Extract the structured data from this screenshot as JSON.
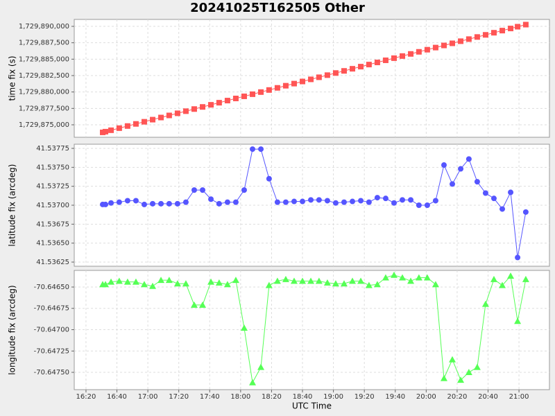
{
  "title": "20241025T162505 Other",
  "chart_data": [
    {
      "type": "line",
      "ylabel": "time fix (s)",
      "grid": true,
      "ylim": [
        1729873099,
        1729891056
      ],
      "yticks": [
        {
          "value": 1729875000,
          "label": "1,729,875,000"
        },
        {
          "value": 1729877500,
          "label": "1,729,877,500"
        },
        {
          "value": 1729880000,
          "label": "1,729,880,000"
        },
        {
          "value": 1729882500,
          "label": "1,729,882,500"
        },
        {
          "value": 1729885000,
          "label": "1,729,885,000"
        },
        {
          "value": 1729887500,
          "label": "1,729,887,500"
        },
        {
          "value": 1729890000,
          "label": "1,729,890,000"
        }
      ],
      "x": [
        990.8,
        992.6,
        996.2,
        1001.5,
        1006.9,
        1012.3,
        1017.7,
        1023.1,
        1028.5,
        1033.8,
        1039.2,
        1044.6,
        1050.0,
        1055.4,
        1060.8,
        1066.1,
        1071.5,
        1076.9,
        1082.3,
        1087.7,
        1093.1,
        1098.4,
        1103.8,
        1109.2,
        1114.6,
        1120.0,
        1125.4,
        1130.7,
        1136.1,
        1141.5,
        1146.9,
        1152.3,
        1157.7,
        1163.0,
        1168.4,
        1173.8,
        1179.2,
        1184.6,
        1190.0,
        1195.3,
        1200.7,
        1206.1,
        1211.5,
        1216.9,
        1222.3,
        1227.6,
        1233.0,
        1238.4,
        1243.8,
        1249.2,
        1254.6,
        1259.1,
        1264.4
      ],
      "series": [
        {
          "color": "#ff5555",
          "marker": "square",
          "values": [
            1729873848,
            1729873956,
            1729874172,
            1729874490,
            1729874814,
            1729875138,
            1729875462,
            1729875786,
            1729876110,
            1729876428,
            1729876752,
            1729877076,
            1729877400,
            1729877724,
            1729878048,
            1729878366,
            1729878690,
            1729879014,
            1729879338,
            1729879662,
            1729879986,
            1729880304,
            1729880628,
            1729880952,
            1729881276,
            1729881600,
            1729881924,
            1729882242,
            1729882566,
            1729882890,
            1729883214,
            1729883538,
            1729883862,
            1729884180,
            1729884504,
            1729884828,
            1729885152,
            1729885476,
            1729885800,
            1729886118,
            1729886442,
            1729886766,
            1729887090,
            1729887414,
            1729887738,
            1729888056,
            1729888380,
            1729888704,
            1729889028,
            1729889352,
            1729889676,
            1729889946,
            1729890264
          ]
        }
      ]
    },
    {
      "type": "line",
      "ylabel": "latitude fix (arcdeg)",
      "grid": true,
      "ylim": [
        41.536195,
        41.537805
      ],
      "yticks": [
        41.53625,
        {
          "value": 41.5365,
          "label": "41.53650"
        },
        41.53675,
        {
          "value": 41.537,
          "label": "41.53700"
        },
        41.53725,
        {
          "value": 41.5375,
          "label": "41.53750"
        },
        41.53775
      ],
      "x": [
        990.8,
        992.6,
        996.2,
        1001.5,
        1006.9,
        1012.3,
        1017.7,
        1023.1,
        1028.5,
        1033.8,
        1039.2,
        1044.6,
        1050.0,
        1055.4,
        1060.8,
        1066.1,
        1071.5,
        1076.9,
        1082.3,
        1087.7,
        1093.1,
        1098.4,
        1103.8,
        1109.2,
        1114.6,
        1120.0,
        1125.4,
        1130.7,
        1136.1,
        1141.5,
        1146.9,
        1152.3,
        1157.7,
        1163.0,
        1168.4,
        1173.8,
        1179.2,
        1184.6,
        1190.0,
        1195.3,
        1200.7,
        1206.1,
        1211.5,
        1216.9,
        1222.3,
        1227.6,
        1233.0,
        1238.4,
        1243.8,
        1249.2,
        1254.6,
        1259.1,
        1264.4
      ],
      "series": [
        {
          "color": "#5555ff",
          "marker": "circle",
          "values": [
            41.53701,
            41.53701,
            41.53703,
            41.53704,
            41.53706,
            41.53706,
            41.53701,
            41.53702,
            41.53702,
            41.53702,
            41.53702,
            41.53704,
            41.5372,
            41.5372,
            41.53708,
            41.53702,
            41.53704,
            41.53704,
            41.5372,
            41.53774,
            41.53774,
            41.53735,
            41.53704,
            41.53704,
            41.53705,
            41.53705,
            41.53707,
            41.53707,
            41.53706,
            41.53703,
            41.53704,
            41.53705,
            41.53706,
            41.53704,
            41.5371,
            41.53709,
            41.53703,
            41.53707,
            41.53707,
            41.537,
            41.537,
            41.53706,
            41.53753,
            41.53728,
            41.53748,
            41.53761,
            41.53731,
            41.53716,
            41.53709,
            41.53695,
            41.53717,
            41.53631,
            41.53691
          ]
        }
      ]
    },
    {
      "type": "line",
      "ylabel": "longitude fix (arcdeg)",
      "xlabel": "UTC Time",
      "grid": true,
      "ylim": [
        -70.647703,
        -70.646305
      ],
      "yticks": [
        {
          "value": -70.6465,
          "label": "-70.64650"
        },
        -70.64675,
        {
          "value": -70.647,
          "label": "-70.64700"
        },
        -70.64725,
        {
          "value": -70.6475,
          "label": "-70.64750"
        }
      ],
      "xlim": [
        972.4,
        1279.7
      ],
      "xticks": [
        {
          "value": 980,
          "label": "16:20"
        },
        {
          "value": 1000,
          "label": "16:40"
        },
        {
          "value": 1020,
          "label": "17:00"
        },
        {
          "value": 1040,
          "label": "17:20"
        },
        {
          "value": 1060,
          "label": "17:40"
        },
        {
          "value": 1080,
          "label": "18:00"
        },
        {
          "value": 1100,
          "label": "18:20"
        },
        {
          "value": 1120,
          "label": "18:40"
        },
        {
          "value": 1140,
          "label": "19:00"
        },
        {
          "value": 1160,
          "label": "19:20"
        },
        {
          "value": 1180,
          "label": "19:40"
        },
        {
          "value": 1200,
          "label": "20:00"
        },
        {
          "value": 1220,
          "label": "20:20"
        },
        {
          "value": 1240,
          "label": "20:40"
        },
        {
          "value": 1260,
          "label": "21:00"
        }
      ],
      "x": [
        990.8,
        992.6,
        996.2,
        1001.5,
        1006.9,
        1012.3,
        1017.7,
        1023.1,
        1028.5,
        1033.8,
        1039.2,
        1044.6,
        1050.0,
        1055.4,
        1060.8,
        1066.1,
        1071.5,
        1076.9,
        1082.3,
        1087.7,
        1093.1,
        1098.4,
        1103.8,
        1109.2,
        1114.6,
        1120.0,
        1125.4,
        1130.7,
        1136.1,
        1141.5,
        1146.9,
        1152.3,
        1157.7,
        1163.0,
        1168.4,
        1173.8,
        1179.2,
        1184.6,
        1190.0,
        1195.3,
        1200.7,
        1206.1,
        1211.5,
        1216.9,
        1222.3,
        1227.6,
        1233.0,
        1238.4,
        1243.8,
        1249.2,
        1254.6,
        1259.1,
        1264.4
      ],
      "series": [
        {
          "color": "#55ff55",
          "marker": "triangle",
          "values": [
            -70.64647,
            -70.64647,
            -70.64644,
            -70.64643,
            -70.64644,
            -70.64644,
            -70.64647,
            -70.64649,
            -70.64642,
            -70.64642,
            -70.64646,
            -70.64646,
            -70.64671,
            -70.64671,
            -70.64644,
            -70.64645,
            -70.64647,
            -70.64642,
            -70.64698,
            -70.64762,
            -70.64744,
            -70.64648,
            -70.64643,
            -70.64641,
            -70.64643,
            -70.64643,
            -70.64643,
            -70.64643,
            -70.64645,
            -70.64646,
            -70.64646,
            -70.64643,
            -70.64643,
            -70.64648,
            -70.64647,
            -70.64639,
            -70.64636,
            -70.64639,
            -70.64643,
            -70.64639,
            -70.64639,
            -70.64647,
            -70.64757,
            -70.64735,
            -70.64759,
            -70.6475,
            -70.64744,
            -70.6467,
            -70.64641,
            -70.64648,
            -70.64637,
            -70.6469,
            -70.64641
          ]
        }
      ]
    }
  ]
}
